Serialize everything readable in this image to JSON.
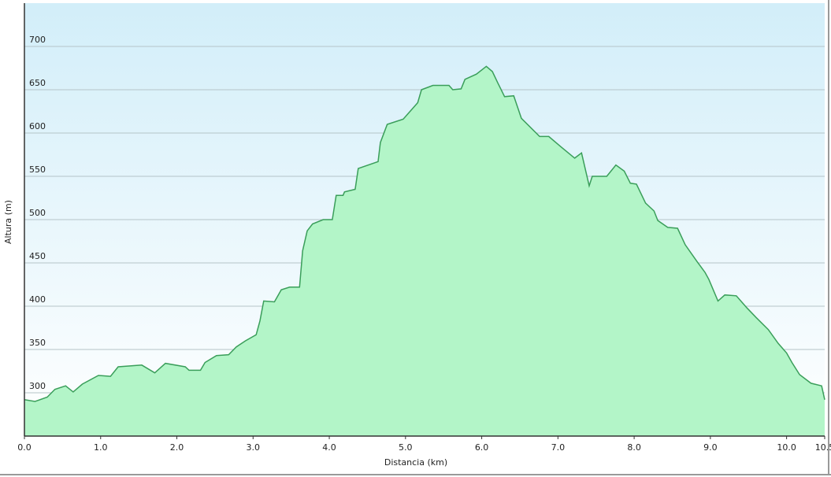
{
  "chart_data": {
    "type": "area",
    "xlabel": "Distancia   (km)",
    "ylabel": "Altura (m)",
    "x": [
      0,
      0.14,
      0.3,
      0.4,
      0.54,
      0.64,
      0.76,
      0.97,
      1.13,
      1.23,
      1.54,
      1.71,
      1.85,
      2.11,
      2.16,
      2.31,
      2.37,
      2.52,
      2.68,
      2.78,
      2.9,
      3.04,
      3.09,
      3.14,
      3.28,
      3.37,
      3.48,
      3.61,
      3.65,
      3.71,
      3.78,
      3.92,
      4.04,
      4.09,
      4.18,
      4.2,
      4.34,
      4.38,
      4.64,
      4.67,
      4.76,
      4.97,
      5.05,
      5.16,
      5.21,
      5.36,
      5.57,
      5.62,
      5.73,
      5.78,
      5.93,
      6.06,
      6.14,
      6.21,
      6.3,
      6.42,
      6.52,
      6.76,
      6.88,
      7.04,
      7.22,
      7.31,
      7.41,
      7.45,
      7.64,
      7.76,
      7.87,
      7.95,
      8.03,
      8.15,
      8.26,
      8.31,
      8.44,
      8.57,
      8.67,
      8.83,
      8.93,
      8.98,
      9.1,
      9.19,
      9.34,
      9.48,
      9.6,
      9.76,
      9.89,
      10.0,
      10.07,
      10.17,
      10.32,
      10.46,
      10.5
    ],
    "values": [
      292,
      290,
      295,
      304,
      308,
      301,
      310,
      320,
      319,
      330,
      332,
      323,
      334,
      330,
      326,
      326,
      335,
      343,
      344,
      353,
      360,
      367,
      383,
      406,
      405,
      419,
      422,
      422,
      464,
      487,
      495,
      500,
      500,
      528,
      528,
      532,
      535,
      559,
      567,
      589,
      610,
      616,
      624,
      635,
      650,
      655,
      655,
      650,
      651,
      662,
      668,
      677,
      671,
      658,
      642,
      643,
      617,
      596,
      596,
      584,
      571,
      577,
      539,
      550,
      550,
      563,
      556,
      542,
      541,
      519,
      510,
      499,
      491,
      490,
      471,
      451,
      439,
      431,
      406,
      413,
      412,
      398,
      387,
      373,
      357,
      346,
      335,
      321,
      311,
      308,
      292
    ],
    "color": "#b3f5c8",
    "line_color": "#3a9e5a",
    "xlim": [
      0,
      10.5
    ],
    "ylim": [
      250,
      750
    ],
    "xticks": [
      {
        "value": 0,
        "label": "0.0"
      },
      {
        "value": 1,
        "label": "1.0"
      },
      {
        "value": 2,
        "label": "2.0"
      },
      {
        "value": 3,
        "label": "3.0"
      },
      {
        "value": 4,
        "label": "4.0"
      },
      {
        "value": 5,
        "label": "5.0"
      },
      {
        "value": 6,
        "label": "6.0"
      },
      {
        "value": 7,
        "label": "7.0"
      },
      {
        "value": 8,
        "label": "8.0"
      },
      {
        "value": 9,
        "label": "9.0"
      },
      {
        "value": 10,
        "label": "10.0"
      },
      {
        "value": 10.5,
        "label": "10.5"
      }
    ],
    "yticks": [
      300,
      350,
      400,
      450,
      500,
      550,
      600,
      650,
      700
    ],
    "grid": true
  }
}
